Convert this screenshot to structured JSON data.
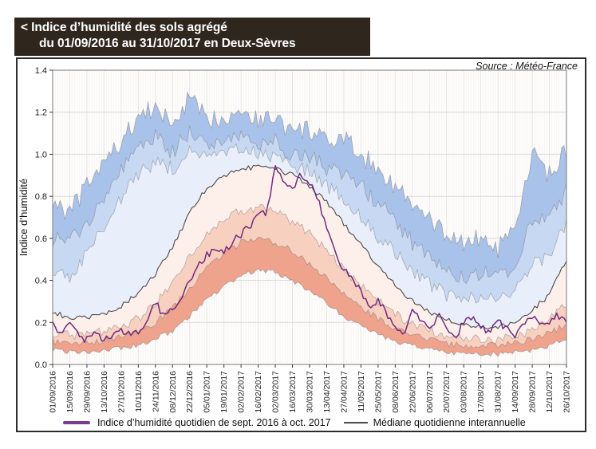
{
  "title": {
    "line1": "< Indice d’humidité des sols agrégé",
    "line2": "du 01/09/2016 au 31/10/2017 en Deux-Sèvres"
  },
  "source_label": "Source : Météo-France",
  "colors": {
    "title_background": "#2f271e",
    "title_text": "#ffffff",
    "frame_border": "#2c2c2c",
    "plot_border": "#7a7a7a",
    "median_line": "#4a4a4a",
    "daily_index_line": "#6f2b7e",
    "legend_daily_swatch": "#7d3a8e"
  },
  "chart_data": {
    "type": "area",
    "title": "Indice d’humidité des sols agrégé du 01/09/2016 au 31/10/2017 en Deux-Sèvres",
    "ylabel": "Indice d’humidité",
    "xlabel": "",
    "ylim": [
      0,
      1.4
    ],
    "ytick_labels": [
      "0.0",
      "0.2",
      "0.4",
      "0.6",
      "0.8",
      "1.0",
      "1.2",
      "1.4"
    ],
    "x_tick_interval_days": 14,
    "x_total_days": 420,
    "grid": true,
    "legend_position": "bottom",
    "x_tick_labels": [
      "01/09/2016",
      "15/09/2016",
      "29/09/2016",
      "13/10/2016",
      "27/10/2016",
      "10/11/2016",
      "24/11/2016",
      "08/12/2016",
      "22/12/2016",
      "05/01/2017",
      "19/01/2017",
      "02/02/2017",
      "16/02/2017",
      "02/03/2017",
      "16/03/2017",
      "30/03/2017",
      "13/04/2017",
      "27/04/2017",
      "11/05/2017",
      "25/05/2017",
      "08/06/2017",
      "22/06/2017",
      "06/07/2017",
      "20/07/2017",
      "03/08/2017",
      "17/08/2017",
      "31/08/2017",
      "14/09/2017",
      "28/09/2017",
      "12/10/2017",
      "26/10/2017"
    ],
    "series": [
      {
        "name": "maximum",
        "x_step_days": 14,
        "daily_variability": 0.05,
        "values": [
          0.78,
          0.72,
          0.85,
          0.96,
          1.06,
          1.18,
          1.22,
          1.14,
          1.27,
          1.16,
          1.18,
          1.22,
          1.16,
          1.18,
          1.1,
          1.12,
          1.05,
          1.07,
          1.0,
          0.93,
          0.85,
          0.76,
          0.68,
          0.62,
          0.58,
          0.6,
          0.55,
          0.63,
          1.0,
          0.9,
          1.02
        ]
      },
      {
        "name": "percentile_90",
        "x_step_days": 14,
        "daily_variability": 0.04,
        "values": [
          0.6,
          0.58,
          0.68,
          0.8,
          0.92,
          1.03,
          1.08,
          1.01,
          1.11,
          1.05,
          1.07,
          1.09,
          1.05,
          1.06,
          1.0,
          0.99,
          0.93,
          0.91,
          0.85,
          0.77,
          0.68,
          0.58,
          0.5,
          0.45,
          0.42,
          0.44,
          0.41,
          0.47,
          0.7,
          0.68,
          0.84
        ]
      },
      {
        "name": "percentile_75",
        "x_step_days": 14,
        "daily_variability": 0.035,
        "values": [
          0.44,
          0.42,
          0.52,
          0.66,
          0.79,
          0.91,
          0.96,
          0.93,
          1.01,
          0.98,
          1.0,
          1.02,
          1.0,
          0.99,
          0.95,
          0.92,
          0.85,
          0.79,
          0.71,
          0.61,
          0.53,
          0.44,
          0.38,
          0.33,
          0.31,
          0.32,
          0.31,
          0.34,
          0.49,
          0.51,
          0.67
        ]
      },
      {
        "name": "mediane_interannuelle",
        "x_step_days": 14,
        "daily_variability": 0.012,
        "values": [
          0.25,
          0.22,
          0.22,
          0.24,
          0.28,
          0.34,
          0.43,
          0.56,
          0.72,
          0.84,
          0.9,
          0.93,
          0.94,
          0.93,
          0.9,
          0.85,
          0.77,
          0.67,
          0.57,
          0.47,
          0.38,
          0.3,
          0.25,
          0.21,
          0.19,
          0.18,
          0.18,
          0.2,
          0.26,
          0.33,
          0.5
        ]
      },
      {
        "name": "percentile_25",
        "x_step_days": 14,
        "daily_variability": 0.022,
        "values": [
          0.15,
          0.14,
          0.14,
          0.16,
          0.18,
          0.22,
          0.29,
          0.39,
          0.52,
          0.62,
          0.69,
          0.73,
          0.75,
          0.73,
          0.68,
          0.62,
          0.54,
          0.45,
          0.37,
          0.3,
          0.24,
          0.19,
          0.16,
          0.14,
          0.13,
          0.12,
          0.12,
          0.13,
          0.16,
          0.21,
          0.29
        ]
      },
      {
        "name": "percentile_10",
        "x_step_days": 14,
        "daily_variability": 0.016,
        "values": [
          0.11,
          0.1,
          0.1,
          0.11,
          0.13,
          0.16,
          0.2,
          0.27,
          0.36,
          0.46,
          0.53,
          0.58,
          0.6,
          0.58,
          0.54,
          0.48,
          0.41,
          0.33,
          0.27,
          0.22,
          0.17,
          0.14,
          0.12,
          0.1,
          0.09,
          0.09,
          0.09,
          0.1,
          0.12,
          0.15,
          0.19
        ]
      },
      {
        "name": "minimum",
        "x_step_days": 14,
        "daily_variability": 0.012,
        "values": [
          0.07,
          0.06,
          0.06,
          0.07,
          0.08,
          0.09,
          0.12,
          0.16,
          0.23,
          0.31,
          0.37,
          0.42,
          0.45,
          0.44,
          0.4,
          0.35,
          0.29,
          0.23,
          0.18,
          0.14,
          0.11,
          0.09,
          0.07,
          0.06,
          0.05,
          0.05,
          0.05,
          0.06,
          0.07,
          0.09,
          0.12
        ]
      },
      {
        "name": "indice_2016_2017",
        "x_step_days": 7,
        "daily_variability": 0.018,
        "values": [
          0.21,
          0.14,
          0.21,
          0.13,
          0.12,
          0.15,
          0.12,
          0.13,
          0.17,
          0.14,
          0.15,
          0.22,
          0.3,
          0.22,
          0.26,
          0.32,
          0.4,
          0.47,
          0.52,
          0.55,
          0.54,
          0.58,
          0.62,
          0.66,
          0.7,
          0.73,
          0.93,
          0.87,
          0.83,
          0.91,
          0.86,
          0.78,
          0.66,
          0.52,
          0.45,
          0.42,
          0.34,
          0.28,
          0.31,
          0.24,
          0.17,
          0.14,
          0.27,
          0.21,
          0.16,
          0.24,
          0.16,
          0.13,
          0.2,
          0.22,
          0.18,
          0.15,
          0.21,
          0.17,
          0.14,
          0.19,
          0.22,
          0.19,
          0.21,
          0.23,
          0.2
        ]
      }
    ],
    "bands": [
      {
        "upper": "maximum",
        "lower": "percentile_90",
        "fill": "#a9c2e9"
      },
      {
        "upper": "percentile_90",
        "lower": "percentile_75",
        "fill": "#c7d8f3"
      },
      {
        "upper": "percentile_75",
        "lower": "mediane_interannuelle",
        "fill": "#e8effa"
      },
      {
        "upper": "mediane_interannuelle",
        "lower": "percentile_25",
        "fill": "#fdf0ea"
      },
      {
        "upper": "percentile_25",
        "lower": "percentile_10",
        "fill": "#f8d0bf"
      },
      {
        "upper": "percentile_10",
        "lower": "minimum",
        "fill": "#efa28c"
      }
    ],
    "lines": [
      {
        "series": "mediane_interannuelle",
        "color": "#4a4a4a",
        "width": 1.1
      },
      {
        "series": "indice_2016_2017",
        "color": "#6f2b7e",
        "width": 1.5
      }
    ],
    "legend": [
      {
        "label": "Indice d’humidité quotidien de sept. 2016 à oct. 2017",
        "color": "#7d3a8e"
      },
      {
        "label": "Médiane quotidienne interannuelle",
        "color": "#4a4a4a"
      }
    ]
  }
}
